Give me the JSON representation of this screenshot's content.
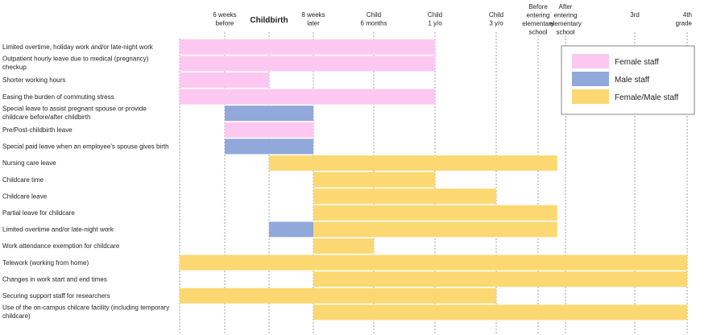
{
  "chart_data": {
    "type": "gantt",
    "title": "",
    "columns": [
      {
        "label": [
          "6 weeks",
          "before"
        ],
        "bold": false
      },
      {
        "label": [
          "Childbirth"
        ],
        "bold": true
      },
      {
        "label": [
          "8 weeks",
          "later"
        ],
        "bold": false
      },
      {
        "label": [
          "Child",
          "6 months"
        ],
        "bold": false
      },
      {
        "label": [
          "Child",
          "1 y/o"
        ],
        "bold": false
      },
      {
        "label": [
          "Child",
          "3 y/o"
        ],
        "bold": false
      },
      {
        "label": [
          "Before",
          "entering",
          "elementary",
          "school"
        ],
        "bold": false
      },
      {
        "label": [
          "After",
          "entering",
          "elementary",
          "school"
        ],
        "bold": false
      },
      {
        "label": [
          "3rd"
        ],
        "bold": false
      },
      {
        "label": [
          "4th",
          "grade"
        ],
        "bold": false
      }
    ],
    "categories_legend": [
      {
        "key": "female",
        "name": "Female staff",
        "color": "#fcc8f2"
      },
      {
        "key": "male",
        "name": "Male staff",
        "color": "#91a8db"
      },
      {
        "key": "both",
        "name": "Female/Male staff",
        "color": "#fcd872"
      }
    ],
    "rows": [
      {
        "label": [
          "Limited overtime, holiday work and/or late-night work"
        ],
        "bars": [
          {
            "start": -1,
            "end": 4,
            "group": "female"
          }
        ]
      },
      {
        "label": [
          "Outpatient hourly leave due to medical (pregnancy)",
          "checkup"
        ],
        "bars": [
          {
            "start": -1,
            "end": 4,
            "group": "female"
          }
        ]
      },
      {
        "label": [
          "Shorter working hours"
        ],
        "bars": [
          {
            "start": -1,
            "end": 1,
            "group": "female"
          }
        ]
      },
      {
        "label": [
          "Easing the burden of commuting stress"
        ],
        "bars": [
          {
            "start": -1,
            "end": 4,
            "group": "female"
          }
        ]
      },
      {
        "label": [
          "Special leave to assist pregnant spouse or provide",
          "childcare before/after childbirth"
        ],
        "bars": [
          {
            "start": 0,
            "end": 2,
            "group": "male"
          }
        ]
      },
      {
        "label": [
          "Pre/Post-childbirth leave"
        ],
        "bars": [
          {
            "start": 0,
            "end": 2,
            "group": "female"
          }
        ]
      },
      {
        "label": [
          "Special paid leave when an employee's spouse gives birth"
        ],
        "bars": [
          {
            "start": 0,
            "end": 2,
            "group": "male"
          }
        ]
      },
      {
        "label": [
          "Nursing care leave"
        ],
        "bars": [
          {
            "start": 1,
            "end": 6.7,
            "group": "both"
          }
        ]
      },
      {
        "label": [
          "Childcare time"
        ],
        "bars": [
          {
            "start": 2,
            "end": 4,
            "group": "both"
          }
        ]
      },
      {
        "label": [
          "Childcare leave"
        ],
        "bars": [
          {
            "start": 2,
            "end": 5,
            "group": "both"
          }
        ]
      },
      {
        "label": [
          "Partial leave for childcare"
        ],
        "bars": [
          {
            "start": 2,
            "end": 6.7,
            "group": "both"
          }
        ]
      },
      {
        "label": [
          "Limited overtime and/or late-night work"
        ],
        "bars": [
          {
            "start": 1,
            "end": 2,
            "group": "male"
          },
          {
            "start": 2,
            "end": 6.7,
            "group": "both"
          }
        ]
      },
      {
        "label": [
          "Work attendance exemption for childcare"
        ],
        "bars": [
          {
            "start": 2,
            "end": 3,
            "group": "both"
          }
        ]
      },
      {
        "label": [
          "Telework (working from home)"
        ],
        "bars": [
          {
            "start": -1,
            "end": 9,
            "group": "both"
          }
        ]
      },
      {
        "label": [
          "Changes in work start and end times"
        ],
        "bars": [
          {
            "start": 2,
            "end": 9,
            "group": "both"
          }
        ]
      },
      {
        "label": [
          "Securing support staff for researchers"
        ],
        "bars": [
          {
            "start": -1,
            "end": 5,
            "group": "both"
          }
        ]
      },
      {
        "label": [
          "Use of the on-campus chilcare facility (including temporary",
          "childcare)"
        ],
        "bars": [
          {
            "start": 2,
            "end": 9,
            "group": "both"
          }
        ]
      }
    ]
  }
}
